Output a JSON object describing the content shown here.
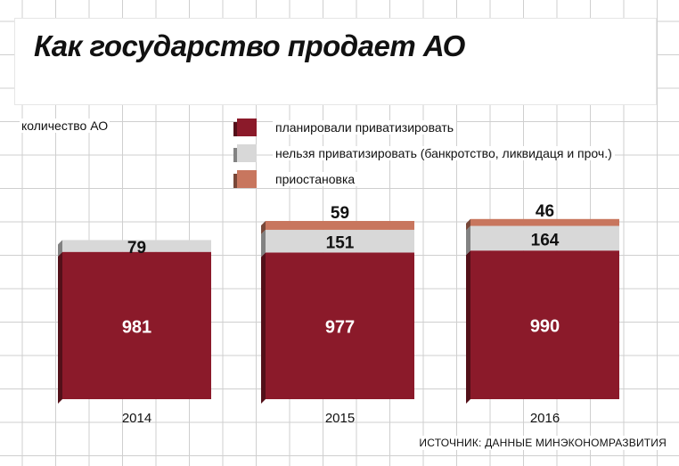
{
  "title": "Как государство продает АО",
  "ylabel": "количество АО",
  "source": "ИСТОЧНИК: ДАННЫЕ МИНЭКОНОМРАЗВИТИЯ",
  "colors": {
    "planned": "#8b1a2a",
    "cannot": "#d8d8d8",
    "suspended": "#c8765e",
    "grid": "#cfcfcf"
  },
  "legend": [
    {
      "label": "планировали приватизировать",
      "color": "#8b1a2a"
    },
    {
      "label": "нельзя приватизировать (банкротство, ликвидаця и проч.)",
      "color": "#d8d8d8"
    },
    {
      "label": "приостановка",
      "color": "#c8765e"
    }
  ],
  "chart_data": {
    "type": "bar",
    "stacked": true,
    "categories": [
      "2014",
      "2015",
      "2016"
    ],
    "series": [
      {
        "name": "планировали приватизировать",
        "values": [
          981,
          977,
          990
        ],
        "color": "#8b1a2a"
      },
      {
        "name": "нельзя приватизировать (банкротство, ликвидаця и проч.)",
        "values": [
          79,
          151,
          164
        ],
        "color": "#d8d8d8"
      },
      {
        "name": "приостановка",
        "values": [
          0,
          59,
          46
        ],
        "color": "#c8765e"
      }
    ],
    "title": "Как государство продает АО",
    "ylabel": "количество АО",
    "xlabel": "",
    "grid": true
  }
}
